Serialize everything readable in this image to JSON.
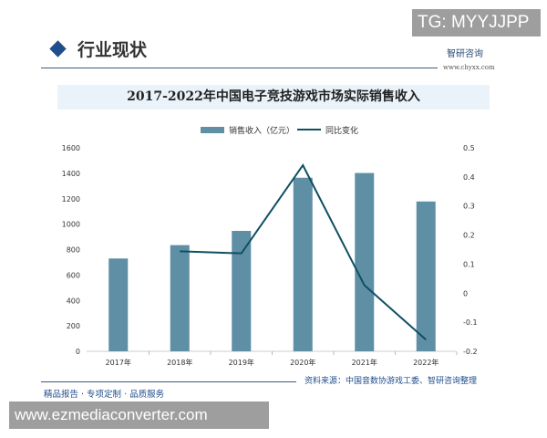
{
  "overlay": {
    "tg": "TG: MYYJJPP",
    "watermark": "www.ezmediaconverter.com"
  },
  "header": {
    "section_title": "行业现状",
    "brand": "智研咨询",
    "brand_url": "www.chyxx.com"
  },
  "footer": {
    "source": "资料来源：中国音数协游戏工委、智研咨询整理",
    "slogan": "精品报告 · 专项定制 · 品质服务"
  },
  "colors": {
    "bar": "#5f8fa5",
    "line": "#0f4f63",
    "accent": "#1f4e8c"
  },
  "chart_data": {
    "type": "bar+line",
    "title": "2017-2022年中国电子竞技游戏市场实际销售收入",
    "categories": [
      "2017年",
      "2018年",
      "2019年",
      "2020年",
      "2021年",
      "2022年"
    ],
    "series": [
      {
        "name": "销售收入（亿元）",
        "type": "bar",
        "axis": "left",
        "values": [
          730,
          835,
          947,
          1365,
          1402,
          1178
        ]
      },
      {
        "name": "同比变化",
        "type": "line",
        "axis": "right",
        "values": [
          null,
          0.144,
          0.137,
          0.44,
          0.027,
          -0.16
        ]
      }
    ],
    "y_left": {
      "range": [
        0,
        1600
      ],
      "ticks": [
        "0",
        "200",
        "400",
        "600",
        "800",
        "1000",
        "1200",
        "1400",
        "1600"
      ]
    },
    "y_right": {
      "range": [
        -0.2,
        0.5
      ],
      "ticks": [
        "-0.2",
        "-0.1",
        "0",
        "0.1",
        "0.2",
        "0.3",
        "0.4",
        "0.5"
      ]
    },
    "legend": "top-center",
    "grid": false
  }
}
